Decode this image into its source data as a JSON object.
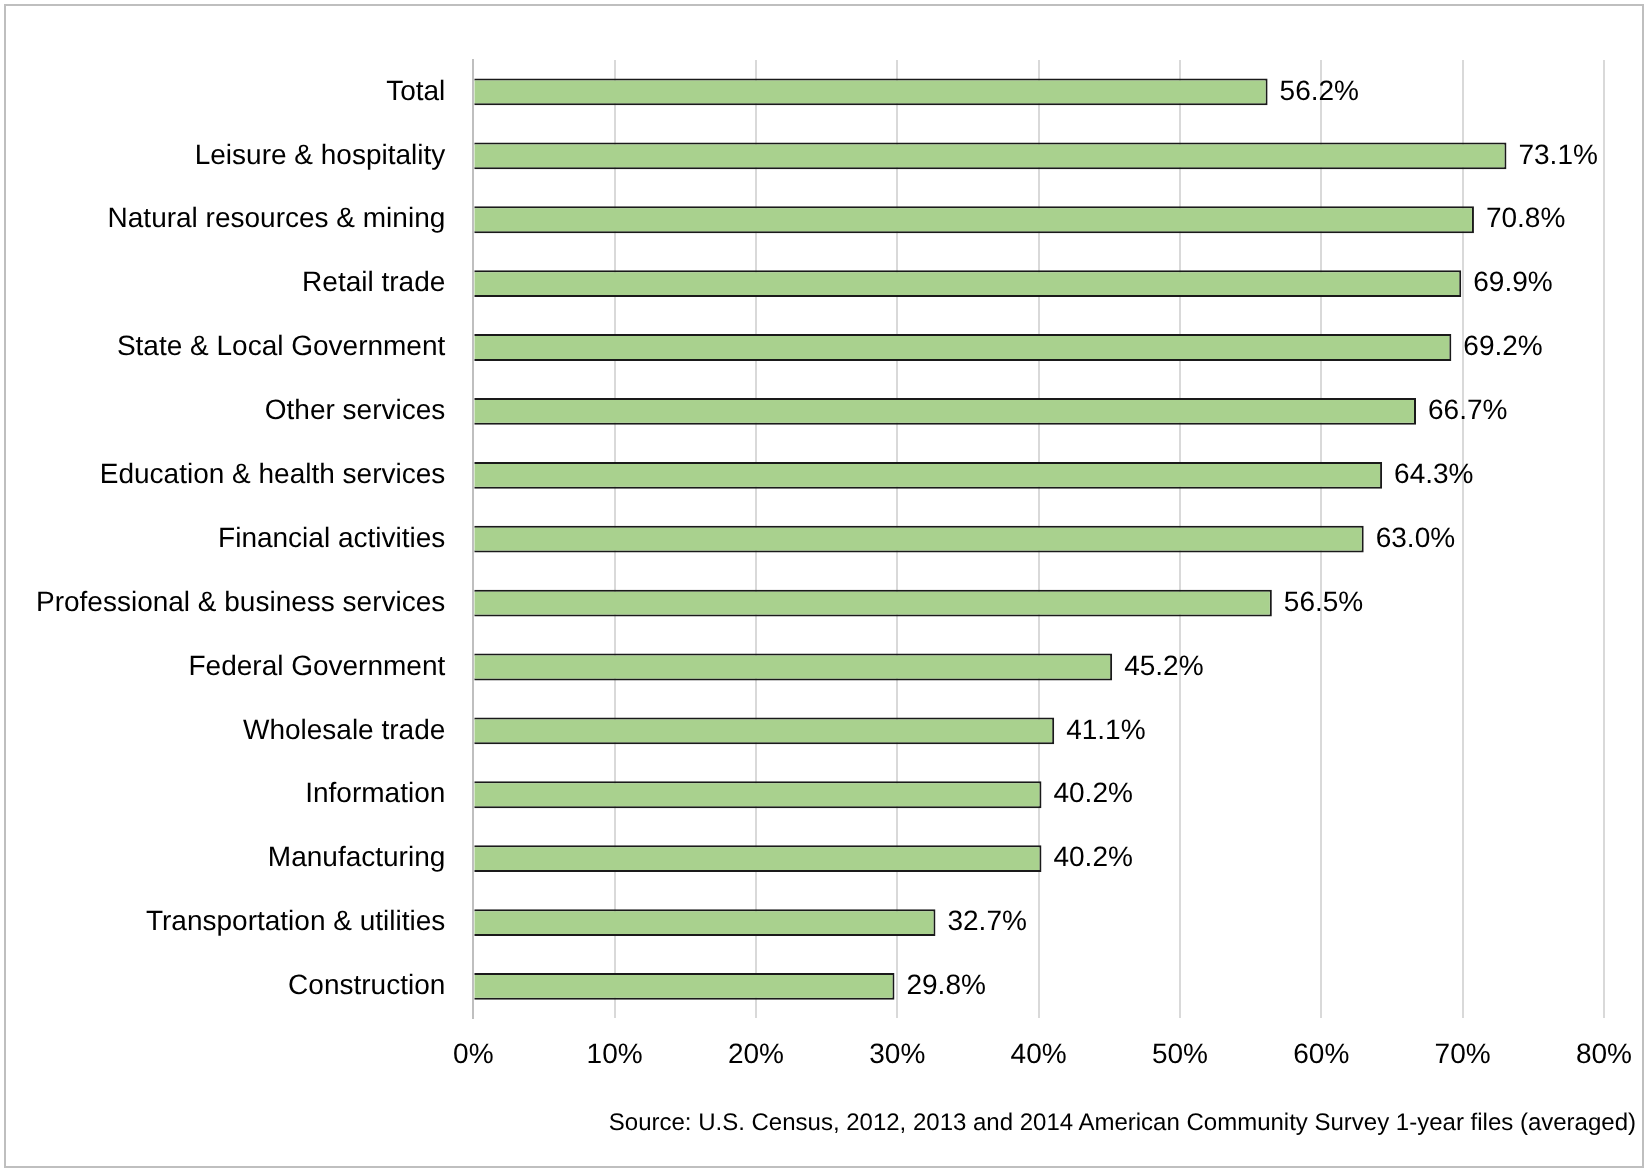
{
  "chart_data": {
    "type": "bar",
    "orientation": "horizontal",
    "categories": [
      "Total",
      "Leisure & hospitality",
      "Natural resources & mining",
      "Retail trade",
      "State & Local Government",
      "Other services",
      "Education & health services",
      "Financial activities",
      "Professional & business services",
      "Federal Government",
      "Wholesale trade",
      "Information",
      "Manufacturing",
      "Transportation & utilities",
      "Construction"
    ],
    "values": [
      56.2,
      73.1,
      70.8,
      69.9,
      69.2,
      66.7,
      64.3,
      63.0,
      56.5,
      45.2,
      41.1,
      40.2,
      40.2,
      32.7,
      29.8
    ],
    "value_labels": [
      "56.2%",
      "73.1%",
      "70.8%",
      "69.9%",
      "69.2%",
      "66.7%",
      "64.3%",
      "63.0%",
      "56.5%",
      "45.2%",
      "41.1%",
      "40.2%",
      "40.2%",
      "32.7%",
      "29.8%"
    ],
    "color": "#a9d18e",
    "xlim": [
      0,
      80
    ],
    "xticks": [
      {
        "value": 0,
        "label": "0%"
      },
      {
        "value": 10,
        "label": "10%"
      },
      {
        "value": 20,
        "label": "20%"
      },
      {
        "value": 30,
        "label": "30%"
      },
      {
        "value": 40,
        "label": "40%"
      },
      {
        "value": 50,
        "label": "50%"
      },
      {
        "value": 60,
        "label": "60%"
      },
      {
        "value": 70,
        "label": "70%"
      },
      {
        "value": 80,
        "label": "80%"
      }
    ],
    "grid": "x",
    "legend": false,
    "annotations": [
      "Source: U.S. Census, 2012, 2013 and 2014 American Community Survey 1-year files (averaged)"
    ]
  }
}
